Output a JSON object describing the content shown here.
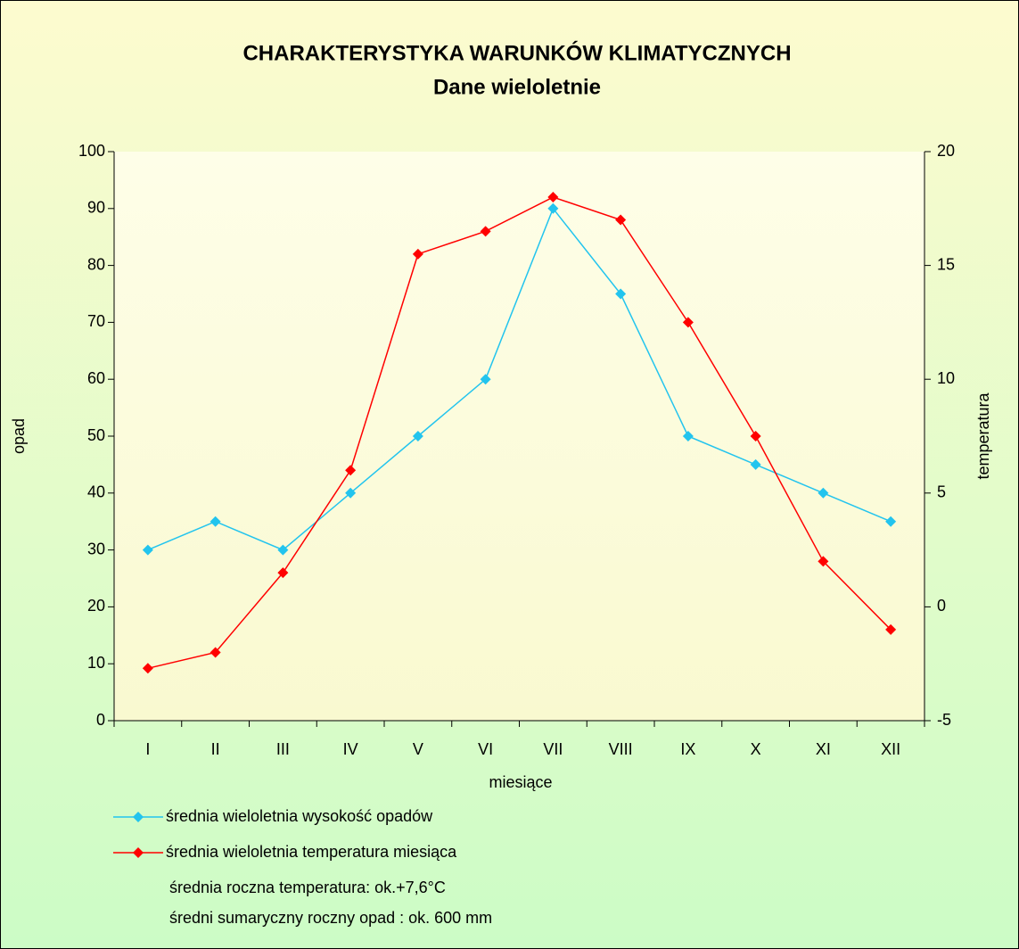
{
  "chart_data": {
    "type": "line",
    "title": "CHARAKTERYSTYKA WARUNKÓW KLIMATYCZNYCH",
    "subtitle": "Dane wieloletnie",
    "x_label": "miesiące",
    "y_label": "opad",
    "y2_label": "temperatura",
    "categories": [
      "I",
      "II",
      "III",
      "IV",
      "V",
      "VI",
      "VII",
      "VIII",
      "IX",
      "X",
      "XI",
      "XII"
    ],
    "series": [
      {
        "name": "średnia wieloletnia wysokość opadów",
        "color": "#22c4ee",
        "values": [
          30,
          35,
          30,
          40,
          50,
          60,
          90,
          75,
          50,
          45,
          40,
          35
        ]
      },
      {
        "name": "średnia wieloletnia temperatura miesiąca",
        "color": "#ff0000",
        "axis": "y2",
        "values": [
          -2.7,
          -2.0,
          1.5,
          6.0,
          15.5,
          16.5,
          18.0,
          17.0,
          12.5,
          7.5,
          2.0,
          -1.0
        ]
      }
    ],
    "ylim": [
      0,
      100
    ],
    "yticks": [
      0,
      10,
      20,
      30,
      40,
      50,
      60,
      70,
      80,
      90,
      100
    ],
    "y2lim": [
      -5,
      20
    ],
    "y2ticks": [
      -5,
      0,
      5,
      10,
      15,
      20
    ],
    "grid": false,
    "legend": "bottom",
    "notes": [
      "średnia roczna temperatura: ok.+7,6°C",
      "średni sumaryczny roczny opad : ok. 600 mm"
    ]
  }
}
